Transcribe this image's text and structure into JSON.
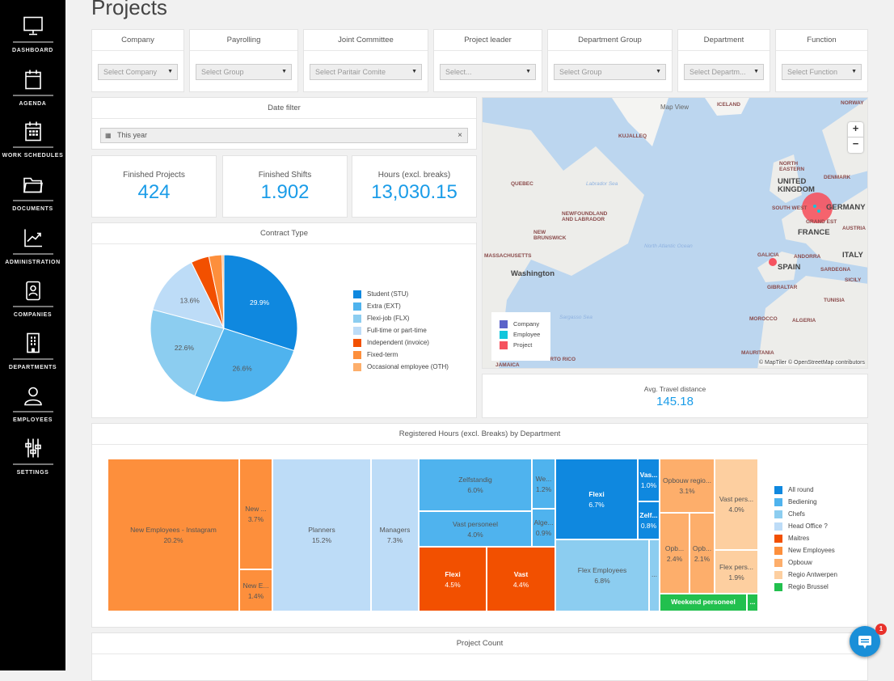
{
  "sidebar": {
    "items": [
      {
        "label": "DASHBOARD",
        "icon": "monitor-icon"
      },
      {
        "label": "AGENDA",
        "icon": "calendar-icon"
      },
      {
        "label": "WORK SCHEDULES",
        "icon": "calendar-grid-icon"
      },
      {
        "label": "DOCUMENTS",
        "icon": "folder-icon"
      },
      {
        "label": "ADMINISTRATION",
        "icon": "chart-trend-icon"
      },
      {
        "label": "COMPANIES",
        "icon": "contact-book-icon"
      },
      {
        "label": "DEPARTMENTS",
        "icon": "building-icon"
      },
      {
        "label": "EMPLOYEES",
        "icon": "user-icon"
      },
      {
        "label": "SETTINGS",
        "icon": "sliders-icon"
      }
    ]
  },
  "page": {
    "title": "Projects"
  },
  "filters": [
    {
      "label": "Company",
      "placeholder": "Select Company"
    },
    {
      "label": "Payrolling",
      "placeholder": "Select Group"
    },
    {
      "label": "Joint Committee",
      "placeholder": "Select Paritair Comite"
    },
    {
      "label": "Project leader",
      "placeholder": "Select..."
    },
    {
      "label": "Department Group",
      "placeholder": "Select Group"
    },
    {
      "label": "Department",
      "placeholder": "Select Departm..."
    },
    {
      "label": "Function",
      "placeholder": "Select Function"
    }
  ],
  "date_filter": {
    "title": "Date filter",
    "value": "This year",
    "clear": "×"
  },
  "kpis": [
    {
      "label": "Finished Projects",
      "value": "424"
    },
    {
      "label": "Finished Shifts",
      "value": "1.902"
    },
    {
      "label": "Hours (excl. breaks)",
      "value": "13,030.15"
    }
  ],
  "map": {
    "title": "Map View",
    "zoom_in": "+",
    "zoom_out": "−",
    "attribution": "© MapTiler © OpenStreetMap contributors",
    "labels": [
      "ICELAND",
      "NORWAY",
      "KUJALLEQ",
      "QUEBEC",
      "Labrador Sea",
      "NEWFOUNDLAND AND LABRADOR",
      "NEW BRUNSWICK",
      "MASSACHUSETTS",
      "Washington",
      "North Atlantic Ocean",
      "Sargasso Sea",
      "NORTH EASTERN",
      "UNITED KINGDOM",
      "DENMARK",
      "SOUTH WEST",
      "GERMANY",
      "GRAND EST",
      "FRANCE",
      "AUSTRIA",
      "GALICIA",
      "ANDORRA",
      "ITALY",
      "SPAIN",
      "SARDEGNA",
      "SICILY",
      "GIBRALTAR",
      "TUNISIA",
      "MOROCCO",
      "ALGERIA",
      "MAURITANIA",
      "JAMAICA",
      "PUERTO RICO"
    ],
    "legend": [
      {
        "label": "Company",
        "color": "#5b63c9"
      },
      {
        "label": "Employee",
        "color": "#12c6dc"
      },
      {
        "label": "Project",
        "color": "#f5535f"
      }
    ]
  },
  "travel": {
    "label": "Avg. Travel distance",
    "value": "145.18"
  },
  "chart_data": [
    {
      "type": "pie",
      "title": "Contract Type",
      "categories": [
        "Student (STU)",
        "Extra (EXT)",
        "Flexi-job (FLX)",
        "Full-time or part-time",
        "Independent (invoice)",
        "Fixed-term",
        "Occasional employee (OTH)"
      ],
      "values": [
        29.9,
        26.6,
        22.6,
        13.6,
        4.0,
        2.9,
        0.4
      ],
      "labels": [
        "29.9%",
        "26.6%",
        "22.6%",
        "13.6%",
        "",
        "",
        ""
      ],
      "colors": [
        "#0f88df",
        "#4fb3ee",
        "#8ccdf0",
        "#bddcf7",
        "#f25000",
        "#fd8f3c",
        "#fdae6b"
      ],
      "legend": "right"
    },
    {
      "type": "treemap",
      "title": "Registered Hours (excl. Breaks) by Department",
      "groups": [
        {
          "name": "All round",
          "color": "#0f88df"
        },
        {
          "name": "Bediening",
          "color": "#4fb3ee"
        },
        {
          "name": "Chefs",
          "color": "#8ccdf0"
        },
        {
          "name": "Head Office ?",
          "color": "#bddcf7"
        },
        {
          "name": "Maitres",
          "color": "#f25000"
        },
        {
          "name": "New Employees",
          "color": "#fd8f3c"
        },
        {
          "name": "Opbouw",
          "color": "#fdae6b"
        },
        {
          "name": "Regio Antwerpen",
          "color": "#fdcfa0"
        },
        {
          "name": "Regio Brussel",
          "color": "#22c04e"
        }
      ],
      "cells": [
        {
          "label": "New Employees - Instagram",
          "value": "20.2%",
          "group": "New Employees"
        },
        {
          "label": "New ...",
          "value": "3.7%",
          "group": "New Employees"
        },
        {
          "label": "New E...",
          "value": "1.4%",
          "group": "New Employees"
        },
        {
          "label": "Planners",
          "value": "15.2%",
          "group": "Head Office ?"
        },
        {
          "label": "Managers",
          "value": "7.3%",
          "group": "Head Office ?"
        },
        {
          "label": "Zelfstandig",
          "value": "6.0%",
          "group": "Bediening"
        },
        {
          "label": "Vast personeel",
          "value": "4.0%",
          "group": "Bediening"
        },
        {
          "label": "We...",
          "value": "1.2%",
          "group": "Bediening"
        },
        {
          "label": "Alge...",
          "value": "0.9%",
          "group": "Bediening"
        },
        {
          "label": "Flexi",
          "value": "4.5%",
          "group": "Maitres"
        },
        {
          "label": "Vast",
          "value": "4.4%",
          "group": "Maitres"
        },
        {
          "label": "Flexi",
          "value": "6.7%",
          "group": "All round"
        },
        {
          "label": "Vas...",
          "value": "1.0%",
          "group": "All round"
        },
        {
          "label": "Zelf...",
          "value": "0.8%",
          "group": "All round"
        },
        {
          "label": "Flex Employees",
          "value": "6.8%",
          "group": "Chefs"
        },
        {
          "label": "...",
          "value": "",
          "group": "Chefs"
        },
        {
          "label": "Opbouw regio...",
          "value": "3.1%",
          "group": "Opbouw"
        },
        {
          "label": "Opb...",
          "value": "2.4%",
          "group": "Opbouw"
        },
        {
          "label": "Opb...",
          "value": "2.1%",
          "group": "Opbouw"
        },
        {
          "label": "Vast pers...",
          "value": "4.0%",
          "group": "Regio Antwerpen"
        },
        {
          "label": "Flex pers...",
          "value": "1.9%",
          "group": "Regio Antwerpen"
        },
        {
          "label": "Weekend personeel",
          "value": "",
          "group": "Regio Brussel"
        },
        {
          "label": "...",
          "value": "",
          "group": "Regio Brussel"
        }
      ],
      "legend": "right"
    }
  ],
  "project_count": {
    "title": "Project Count"
  },
  "chat": {
    "badge": "1"
  }
}
